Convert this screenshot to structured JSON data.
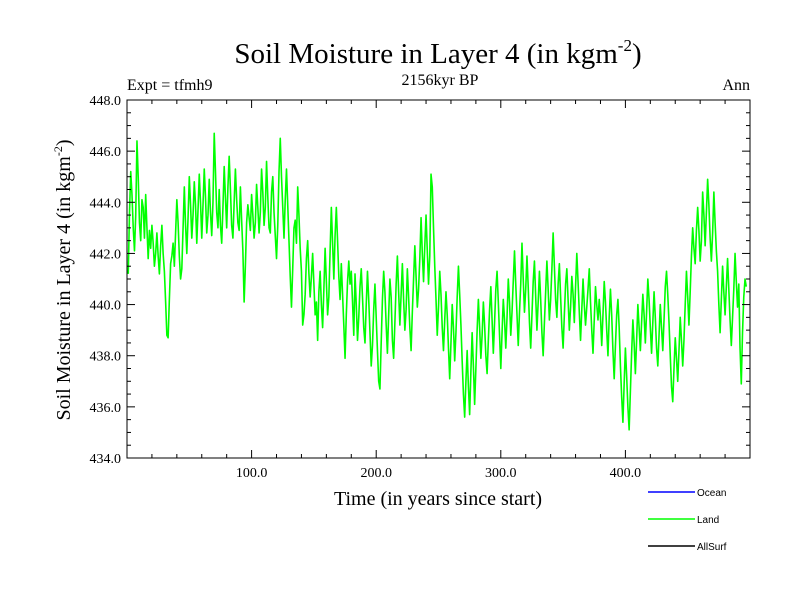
{
  "chart_data": {
    "type": "line",
    "title_main": "Soil Moisture in Layer 4 (in kgm",
    "title_sup": "-2",
    "title_close": ")",
    "subtitle": "2156kyr BP",
    "left_label": "Expt = tfmh9",
    "right_label": "Ann",
    "xlabel": "Time (in years since start)",
    "ylabel_main": "Soil Moisture in Layer 4 (in kgm",
    "ylabel_sup": "-2",
    "ylabel_close": ")",
    "xlim": [
      0,
      500
    ],
    "ylim": [
      434,
      448
    ],
    "x_ticks": [
      100,
      200,
      300,
      400
    ],
    "x_tick_labels": [
      "100.0",
      "200.0",
      "300.0",
      "400.0"
    ],
    "y_ticks": [
      434,
      436,
      438,
      440,
      442,
      444,
      446,
      448
    ],
    "y_tick_labels": [
      "434.0",
      "436.0",
      "438.0",
      "440.0",
      "442.0",
      "444.0",
      "446.0",
      "448.0"
    ],
    "legend": [
      {
        "name": "Ocean",
        "color": "#0000ff"
      },
      {
        "name": "Land",
        "color": "#00ff00"
      },
      {
        "name": "AllSurf",
        "color": "#000000"
      }
    ],
    "series": [
      {
        "name": "Land",
        "color": "#00ff00",
        "x_start": 1,
        "x_step": 1,
        "values": [
          441.2,
          443.6,
          445.2,
          444.3,
          443.0,
          442.1,
          443.5,
          446.4,
          445.0,
          443.2,
          442.5,
          444.1,
          443.8,
          442.6,
          444.3,
          443.0,
          441.8,
          442.9,
          442.2,
          443.1,
          442.4,
          441.5,
          442.0,
          442.8,
          441.9,
          441.2,
          442.3,
          443.1,
          442.0,
          441.3,
          440.1,
          438.8,
          438.7,
          440.2,
          441.6,
          441.9,
          442.4,
          441.5,
          442.8,
          444.1,
          443.2,
          441.9,
          441.0,
          441.4,
          443.0,
          444.6,
          443.1,
          442.0,
          443.4,
          445.0,
          443.9,
          442.6,
          443.5,
          444.8,
          443.9,
          442.4,
          443.7,
          445.1,
          444.0,
          442.6,
          443.9,
          445.3,
          444.2,
          442.8,
          443.5,
          444.9,
          443.6,
          442.7,
          444.0,
          446.7,
          445.2,
          443.6,
          443.0,
          444.5,
          443.1,
          442.4,
          443.8,
          445.4,
          444.2,
          443.0,
          444.6,
          445.8,
          444.5,
          443.1,
          442.6,
          444.0,
          445.3,
          444.1,
          443.2,
          442.9,
          444.6,
          443.3,
          442.1,
          440.1,
          441.5,
          443.2,
          443.9,
          443.4,
          442.9,
          444.3,
          443.5,
          442.6,
          443.2,
          444.7,
          443.8,
          442.8,
          443.6,
          445.3,
          444.4,
          443.1,
          443.8,
          445.6,
          444.2,
          443.0,
          442.8,
          444.4,
          445.0,
          443.6,
          442.7,
          441.8,
          443.1,
          445.2,
          446.5,
          445.0,
          443.8,
          442.6,
          444.1,
          445.3,
          443.9,
          442.5,
          441.1,
          439.9,
          441.4,
          443.0,
          443.3,
          442.4,
          444.6,
          443.5,
          442.2,
          441.3,
          439.2,
          439.6,
          440.4,
          441.8,
          442.5,
          441.2,
          440.3,
          441.1,
          442.0,
          440.8,
          439.6,
          440.1,
          438.6,
          440.5,
          441.3,
          440.0,
          439.1,
          440.6,
          442.2,
          440.9,
          439.6,
          440.3,
          442.1,
          443.8,
          442.4,
          441.0,
          442.7,
          443.8,
          442.5,
          441.1,
          440.2,
          441.6,
          440.4,
          439.2,
          437.9,
          439.6,
          440.9,
          441.7,
          440.8,
          441.3,
          440.1,
          438.8,
          441.2,
          440.0,
          438.6,
          439.5,
          440.7,
          441.4,
          440.3,
          439.1,
          438.5,
          440.0,
          441.3,
          440.2,
          438.9,
          437.6,
          438.4,
          439.8,
          440.8,
          439.5,
          438.2,
          437.0,
          436.7,
          438.5,
          440.2,
          441.3,
          440.5,
          439.2,
          438.1,
          439.6,
          441.0,
          440.3,
          438.6,
          437.9,
          439.3,
          440.8,
          441.9,
          440.5,
          439.2,
          440.4,
          441.6,
          440.2,
          439.0,
          439.8,
          441.4,
          440.3,
          439.1,
          438.2,
          439.7,
          441.0,
          442.3,
          441.1,
          439.9,
          440.6,
          441.8,
          443.4,
          442.0,
          440.9,
          442.3,
          443.5,
          442.1,
          440.8,
          441.9,
          445.1,
          444.6,
          443.0,
          441.5,
          440.2,
          438.8,
          439.9,
          441.3,
          440.4,
          439.1,
          438.2,
          439.4,
          440.5,
          439.6,
          438.3,
          437.1,
          438.5,
          440.0,
          439.1,
          437.8,
          438.9,
          440.3,
          441.5,
          440.4,
          439.2,
          437.8,
          436.5,
          435.6,
          437.0,
          438.2,
          436.8,
          435.7,
          437.4,
          438.9,
          437.6,
          436.1,
          437.5,
          439.0,
          440.2,
          439.1,
          437.9,
          438.8,
          440.1,
          439.2,
          438.0,
          437.3,
          438.6,
          439.8,
          440.7,
          439.4,
          438.1,
          439.3,
          440.6,
          441.3,
          440.1,
          438.8,
          437.5,
          438.9,
          440.2,
          439.4,
          438.3,
          439.5,
          441.0,
          440.1,
          438.8,
          439.7,
          440.9,
          442.1,
          440.8,
          439.6,
          438.4,
          439.7,
          440.8,
          442.4,
          441.0,
          439.7,
          440.6,
          441.9,
          440.7,
          439.3,
          438.3,
          439.6,
          440.9,
          441.7,
          440.3,
          439.0,
          440.1,
          441.3,
          440.2,
          438.9,
          438.0,
          439.3,
          440.5,
          441.7,
          440.6,
          439.4,
          440.2,
          441.4,
          442.8,
          441.5,
          440.2,
          439.5,
          440.8,
          441.6,
          440.3,
          439.1,
          438.3,
          439.6,
          440.8,
          441.4,
          440.2,
          439.0,
          439.9,
          441.1,
          440.4,
          439.3,
          440.7,
          442.0,
          440.9,
          439.7,
          438.6,
          439.8,
          441.0,
          440.0,
          439.2,
          439.9,
          440.6,
          441.4,
          440.1,
          439.0,
          438.1,
          439.4,
          440.7,
          440.0,
          439.4,
          440.2,
          439.5,
          438.4,
          439.6,
          440.9,
          440.1,
          439.0,
          438.0,
          439.5,
          440.6,
          439.6,
          438.2,
          437.1,
          438.4,
          439.6,
          440.2,
          439.1,
          437.6,
          436.4,
          435.4,
          436.9,
          438.3,
          437.2,
          436.0,
          435.1,
          436.6,
          438.1,
          439.4,
          438.5,
          437.3,
          438.6,
          440.0,
          439.1,
          438.2,
          439.3,
          440.4,
          439.6,
          438.5,
          439.7,
          441.0,
          440.2,
          439.1,
          438.1,
          439.3,
          440.5,
          439.5,
          438.3,
          437.6,
          438.8,
          440.0,
          439.1,
          438.2,
          439.4,
          440.7,
          441.3,
          440.4,
          439.3,
          438.0,
          436.8,
          436.2,
          437.5,
          438.7,
          437.9,
          437.0,
          438.2,
          439.5,
          438.6,
          437.6,
          438.6,
          440.0,
          441.3,
          440.3,
          439.2,
          440.5,
          441.9,
          443.0,
          442.2,
          441.6,
          442.9,
          443.8,
          442.9,
          441.7,
          442.5,
          444.4,
          443.5,
          442.3,
          443.6,
          444.9,
          443.9,
          442.6,
          441.7,
          442.8,
          444.4,
          443.2,
          442.1,
          441.3,
          440.0,
          438.9,
          440.2,
          441.5,
          440.5,
          439.6,
          440.7,
          441.8,
          440.6,
          439.4,
          438.4,
          439.5,
          440.6,
          442.0,
          440.9,
          439.9,
          440.8,
          438.3,
          436.9,
          438.9,
          440.3,
          441.0,
          440.7
        ]
      }
    ]
  }
}
